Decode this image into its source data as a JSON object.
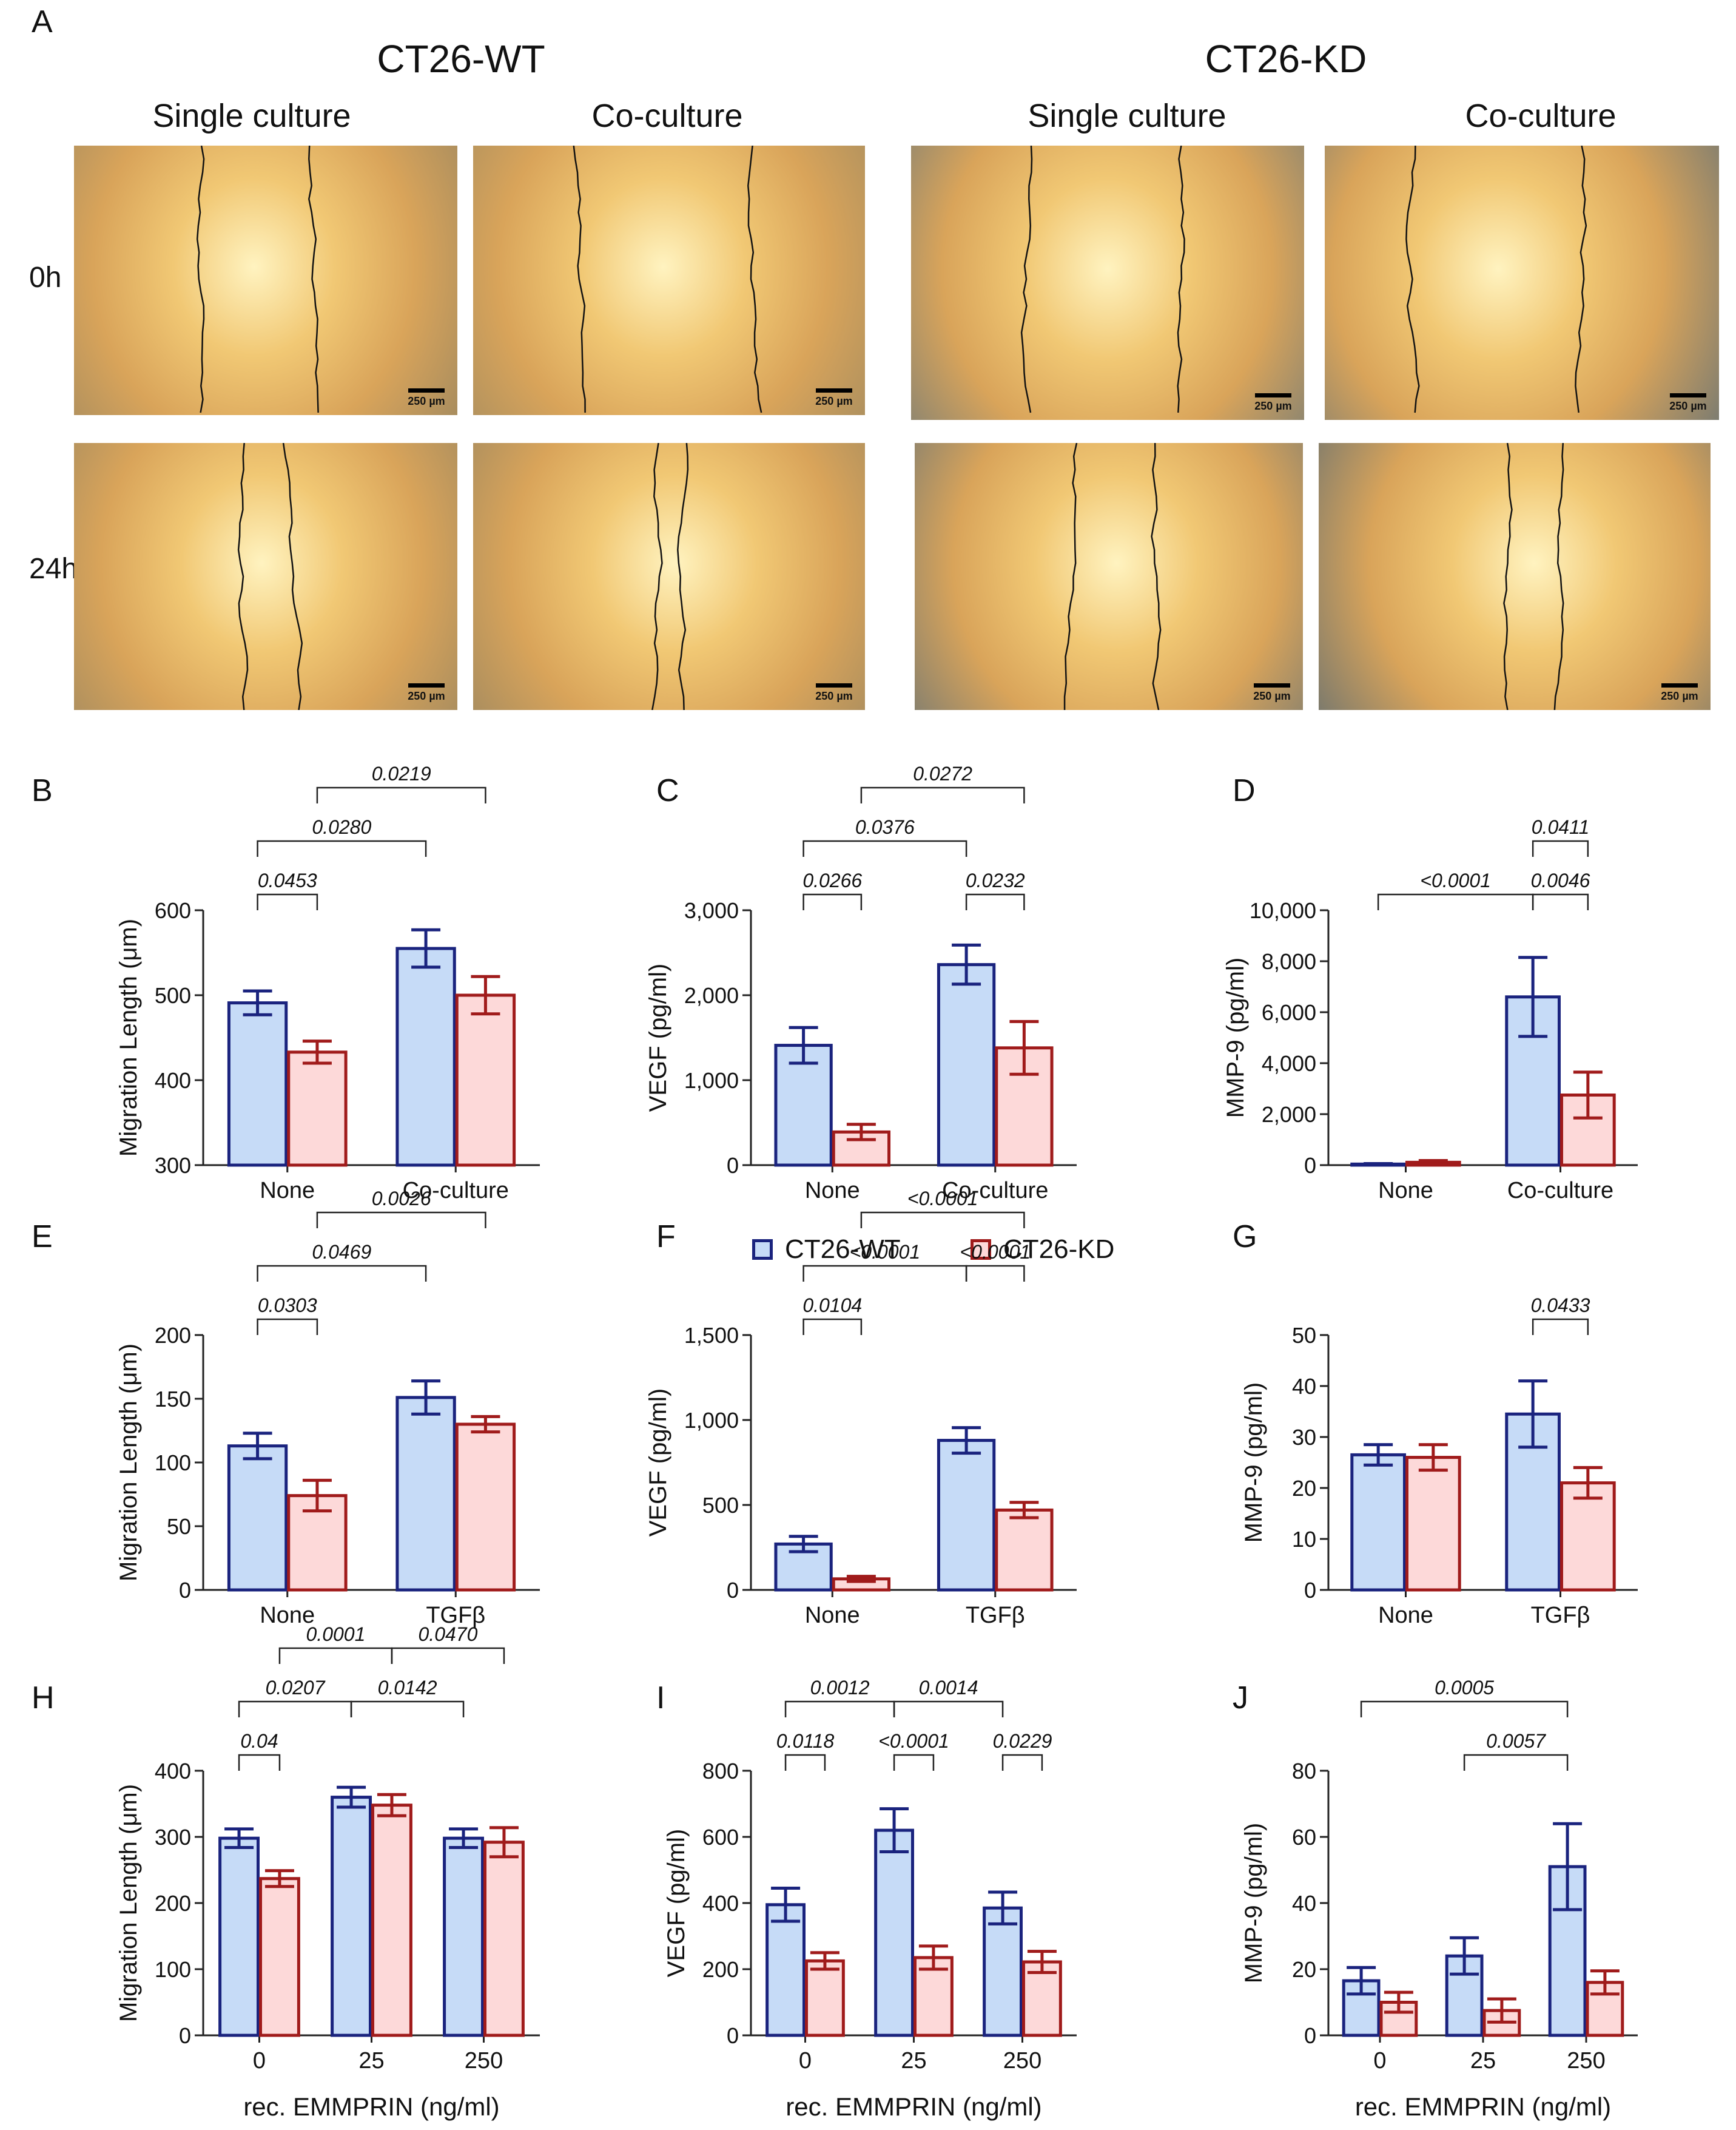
{
  "panel_a": {
    "letter": "A",
    "groups": [
      {
        "title": "CT26-WT",
        "columns": [
          "Single culture",
          "Co-culture"
        ]
      },
      {
        "title": "CT26-KD",
        "columns": [
          "Single culture",
          "Co-culture"
        ]
      }
    ],
    "rows": [
      "0h",
      "24h"
    ],
    "scale_bar_label": "250 µm"
  },
  "legend": {
    "wt": {
      "label": "CT26-WT",
      "color": "#1a237e",
      "fill": "#c6dbf7"
    },
    "kd": {
      "label": "CT26-KD",
      "color": "#a01b1b",
      "fill": "#fdd9d9"
    }
  },
  "chart_data": [
    {
      "panel": "B",
      "type": "bar",
      "ylabel": "Migration Length (μm)",
      "categories": [
        "None",
        "Co-culture"
      ],
      "ylim": [
        300,
        600
      ],
      "yticks": [
        300,
        400,
        500,
        600
      ],
      "ytick_labels": [
        "300",
        "400",
        "500",
        "600"
      ],
      "xlabel": "",
      "series": [
        {
          "name": "CT26-WT",
          "values": [
            491,
            555
          ],
          "errors": [
            14,
            22
          ]
        },
        {
          "name": "CT26-KD",
          "values": [
            433,
            500
          ],
          "errors": [
            13,
            22
          ]
        }
      ],
      "brackets": [
        {
          "from": [
            0,
            0
          ],
          "to": [
            0,
            1
          ],
          "label": "0.0453",
          "level": 0
        },
        {
          "from": [
            0,
            0
          ],
          "to": [
            1,
            0
          ],
          "label": "0.0280",
          "level": 1
        },
        {
          "from": [
            0,
            1
          ],
          "to": [
            1,
            1
          ],
          "label": "0.0219",
          "level": 2
        }
      ]
    },
    {
      "panel": "C",
      "type": "bar",
      "ylabel": "VEGF (pg/ml)",
      "categories": [
        "None",
        "Co-culture"
      ],
      "ylim": [
        0,
        3000
      ],
      "yticks": [
        0,
        1000,
        2000,
        3000
      ],
      "ytick_labels": [
        "0",
        "1,000",
        "2,000",
        "3,000"
      ],
      "xlabel": "",
      "series": [
        {
          "name": "CT26-WT",
          "values": [
            1410,
            2360
          ],
          "errors": [
            210,
            230
          ]
        },
        {
          "name": "CT26-KD",
          "values": [
            390,
            1380
          ],
          "errors": [
            90,
            310
          ]
        }
      ],
      "brackets": [
        {
          "from": [
            0,
            0
          ],
          "to": [
            0,
            1
          ],
          "label": "0.0266",
          "level": 0
        },
        {
          "from": [
            1,
            0
          ],
          "to": [
            1,
            1
          ],
          "label": "0.0232",
          "level": 0
        },
        {
          "from": [
            0,
            0
          ],
          "to": [
            1,
            0
          ],
          "label": "0.0376",
          "level": 1
        },
        {
          "from": [
            0,
            1
          ],
          "to": [
            1,
            1
          ],
          "label": "0.0272",
          "level": 2
        }
      ]
    },
    {
      "panel": "D",
      "type": "bar",
      "ylabel": "MMP-9 (pg/ml)",
      "categories": [
        "None",
        "Co-culture"
      ],
      "ylim": [
        0,
        10000
      ],
      "yticks": [
        0,
        2000,
        4000,
        6000,
        8000,
        10000
      ],
      "ytick_labels": [
        "0",
        "2,000",
        "4,000",
        "6,000",
        "8,000",
        "10,000"
      ],
      "xlabel": "",
      "series": [
        {
          "name": "CT26-WT",
          "values": [
            40,
            6600
          ],
          "errors": [
            20,
            1550
          ]
        },
        {
          "name": "CT26-KD",
          "values": [
            110,
            2750
          ],
          "errors": [
            70,
            900
          ]
        }
      ],
      "brackets": [
        {
          "from": [
            0,
            0
          ],
          "to": [
            1,
            0
          ],
          "label": "<0.0001",
          "level": 0
        },
        {
          "from": [
            1,
            0
          ],
          "to": [
            1,
            1
          ],
          "label": "0.0046",
          "level": 0
        },
        {
          "from": [
            1,
            0
          ],
          "to": [
            1,
            1
          ],
          "label": "0.0411",
          "level": 1
        }
      ]
    },
    {
      "panel": "E",
      "type": "bar",
      "ylabel": "Migration Length (μm)",
      "categories": [
        "None",
        "TGFβ"
      ],
      "ylim": [
        0,
        200
      ],
      "yticks": [
        0,
        50,
        100,
        150,
        200
      ],
      "ytick_labels": [
        "0",
        "50",
        "100",
        "150",
        "200"
      ],
      "xlabel": "",
      "series": [
        {
          "name": "CT26-WT",
          "values": [
            113,
            151
          ],
          "errors": [
            10,
            13
          ]
        },
        {
          "name": "CT26-KD",
          "values": [
            74,
            130
          ],
          "errors": [
            12,
            6
          ]
        }
      ],
      "brackets": [
        {
          "from": [
            0,
            0
          ],
          "to": [
            0,
            1
          ],
          "label": "0.0303",
          "level": 0
        },
        {
          "from": [
            0,
            0
          ],
          "to": [
            1,
            0
          ],
          "label": "0.0469",
          "level": 1
        },
        {
          "from": [
            0,
            1
          ],
          "to": [
            1,
            1
          ],
          "label": "0.0026",
          "level": 2
        }
      ]
    },
    {
      "panel": "F",
      "type": "bar",
      "ylabel": "VEGF (pg/ml)",
      "categories": [
        "None",
        "TGFβ"
      ],
      "ylim": [
        0,
        1500
      ],
      "yticks": [
        0,
        500,
        1000,
        1500
      ],
      "ytick_labels": [
        "0",
        "500",
        "1,000",
        "1,500"
      ],
      "xlabel": "",
      "series": [
        {
          "name": "CT26-WT",
          "values": [
            270,
            880
          ],
          "errors": [
            45,
            75
          ]
        },
        {
          "name": "CT26-KD",
          "values": [
            65,
            470
          ],
          "errors": [
            15,
            45
          ]
        }
      ],
      "brackets": [
        {
          "from": [
            0,
            0
          ],
          "to": [
            0,
            1
          ],
          "label": "0.0104",
          "level": 0
        },
        {
          "from": [
            0,
            0
          ],
          "to": [
            1,
            0
          ],
          "label": "<0.0001",
          "level": 1
        },
        {
          "from": [
            1,
            0
          ],
          "to": [
            1,
            1
          ],
          "label": "<0.0001",
          "level": 1
        },
        {
          "from": [
            0,
            1
          ],
          "to": [
            1,
            1
          ],
          "label": "<0.0001",
          "level": 2
        }
      ]
    },
    {
      "panel": "G",
      "type": "bar",
      "ylabel": "MMP-9 (pg/ml)",
      "categories": [
        "None",
        "TGFβ"
      ],
      "ylim": [
        0,
        50
      ],
      "yticks": [
        0,
        10,
        20,
        30,
        40,
        50
      ],
      "ytick_labels": [
        "0",
        "10",
        "20",
        "30",
        "40",
        "50"
      ],
      "xlabel": "",
      "series": [
        {
          "name": "CT26-WT",
          "values": [
            26.5,
            34.5
          ],
          "errors": [
            2,
            6.5
          ]
        },
        {
          "name": "CT26-KD",
          "values": [
            26,
            21
          ],
          "errors": [
            2.5,
            3
          ]
        }
      ],
      "brackets": [
        {
          "from": [
            1,
            0
          ],
          "to": [
            1,
            1
          ],
          "label": "0.0433",
          "level": 0
        }
      ]
    },
    {
      "panel": "H",
      "type": "bar",
      "ylabel": "Migration Length (μm)",
      "categories": [
        "0",
        "25",
        "250"
      ],
      "ylim": [
        0,
        400
      ],
      "yticks": [
        0,
        100,
        200,
        300,
        400
      ],
      "ytick_labels": [
        "0",
        "100",
        "200",
        "300",
        "400"
      ],
      "xlabel": "rec. EMMPRIN (ng/ml)",
      "series": [
        {
          "name": "CT26-WT",
          "values": [
            298,
            360,
            298
          ],
          "errors": [
            14,
            15,
            14
          ]
        },
        {
          "name": "CT26-KD",
          "values": [
            237,
            348,
            292
          ],
          "errors": [
            12,
            16,
            22
          ]
        }
      ],
      "brackets": [
        {
          "from": [
            0,
            0
          ],
          "to": [
            0,
            1
          ],
          "label": "0.04",
          "level": 0
        },
        {
          "from": [
            0,
            0
          ],
          "to": [
            1,
            0
          ],
          "label": "0.0207",
          "level": 1
        },
        {
          "from": [
            1,
            0
          ],
          "to": [
            2,
            0
          ],
          "label": "0.0142",
          "level": 1
        },
        {
          "from": [
            0,
            1
          ],
          "to": [
            1,
            1
          ],
          "label": "0.0001",
          "level": 2
        },
        {
          "from": [
            1,
            1
          ],
          "to": [
            2,
            1
          ],
          "label": "0.0470",
          "level": 2
        }
      ]
    },
    {
      "panel": "I",
      "type": "bar",
      "ylabel": "VEGF (pg/ml)",
      "categories": [
        "0",
        "25",
        "250"
      ],
      "ylim": [
        0,
        800
      ],
      "yticks": [
        0,
        200,
        400,
        600,
        800
      ],
      "ytick_labels": [
        "0",
        "200",
        "400",
        "600",
        "800"
      ],
      "xlabel": "rec. EMMPRIN (ng/ml)",
      "series": [
        {
          "name": "CT26-WT",
          "values": [
            395,
            620,
            385
          ],
          "errors": [
            50,
            65,
            48
          ]
        },
        {
          "name": "CT26-KD",
          "values": [
            225,
            235,
            222
          ],
          "errors": [
            25,
            35,
            32
          ]
        }
      ],
      "brackets": [
        {
          "from": [
            0,
            0
          ],
          "to": [
            0,
            1
          ],
          "label": "0.0118",
          "level": 0
        },
        {
          "from": [
            1,
            0
          ],
          "to": [
            1,
            1
          ],
          "label": "<0.0001",
          "level": 0
        },
        {
          "from": [
            2,
            0
          ],
          "to": [
            2,
            1
          ],
          "label": "0.0229",
          "level": 0
        },
        {
          "from": [
            0,
            0
          ],
          "to": [
            1,
            0
          ],
          "label": "0.0012",
          "level": 1
        },
        {
          "from": [
            1,
            0
          ],
          "to": [
            2,
            0
          ],
          "label": "0.0014",
          "level": 1
        }
      ]
    },
    {
      "panel": "J",
      "type": "bar",
      "ylabel": "MMP-9 (pg/ml)",
      "categories": [
        "0",
        "25",
        "250"
      ],
      "ylim": [
        0,
        80
      ],
      "yticks": [
        0,
        20,
        40,
        60,
        80
      ],
      "ytick_labels": [
        "0",
        "20",
        "40",
        "60",
        "80"
      ],
      "xlabel": "rec. EMMPRIN (ng/ml)",
      "series": [
        {
          "name": "CT26-WT",
          "values": [
            16.5,
            24,
            51
          ],
          "errors": [
            4,
            5.5,
            13
          ]
        },
        {
          "name": "CT26-KD",
          "values": [
            10,
            7.5,
            16
          ],
          "errors": [
            3,
            3.5,
            3.5
          ]
        }
      ],
      "brackets": [
        {
          "from": [
            1,
            0
          ],
          "to": [
            2,
            0
          ],
          "label": "0.0057",
          "level": 0
        },
        {
          "from": [
            0,
            0
          ],
          "to": [
            2,
            0
          ],
          "label": "0.0005",
          "level": 1
        }
      ]
    }
  ]
}
